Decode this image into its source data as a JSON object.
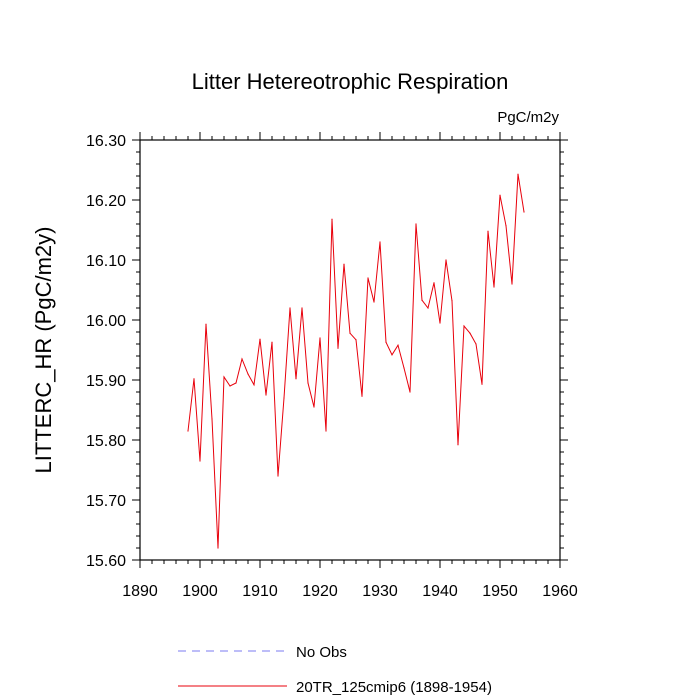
{
  "chart_data": {
    "type": "line",
    "title": "Litter Hetereotrophic Respiration",
    "units": "PgC/m2y",
    "xlabel": "",
    "ylabel": "LITTERC_HR  (PgC/m2y)",
    "xlim": [
      1890,
      1960
    ],
    "ylim": [
      15.6,
      16.3
    ],
    "x_ticks": [
      1890,
      1900,
      1910,
      1920,
      1930,
      1940,
      1950,
      1960
    ],
    "x_tick_labels": [
      "1890",
      "1900",
      "1910",
      "1920",
      "1930",
      "1940",
      "1950",
      "1960"
    ],
    "y_ticks": [
      15.6,
      15.7,
      15.8,
      15.9,
      16.0,
      16.1,
      16.2,
      16.3
    ],
    "y_tick_labels": [
      "15.60",
      "15.70",
      "15.80",
      "15.90",
      "16.00",
      "16.10",
      "16.20",
      "16.30"
    ],
    "series": [
      {
        "name": "20TR_125cmip6 (1898-1954)",
        "color": "#e8000b",
        "style": "solid",
        "x": [
          1898,
          1899,
          1900,
          1901,
          1902,
          1903,
          1904,
          1905,
          1906,
          1907,
          1908,
          1909,
          1910,
          1911,
          1912,
          1913,
          1914,
          1915,
          1916,
          1917,
          1918,
          1919,
          1920,
          1921,
          1922,
          1923,
          1924,
          1925,
          1926,
          1927,
          1928,
          1929,
          1930,
          1931,
          1932,
          1933,
          1934,
          1935,
          1936,
          1937,
          1938,
          1939,
          1940,
          1941,
          1942,
          1943,
          1944,
          1945,
          1946,
          1947,
          1948,
          1949,
          1950,
          1951,
          1952,
          1953,
          1954
        ],
        "values": [
          15.815,
          15.902,
          15.765,
          15.993,
          15.835,
          15.62,
          15.905,
          15.89,
          15.895,
          15.935,
          15.91,
          15.892,
          15.968,
          15.875,
          15.963,
          15.74,
          15.87,
          16.02,
          15.902,
          16.02,
          15.895,
          15.855,
          15.97,
          15.815,
          16.168,
          15.953,
          16.093,
          15.978,
          15.967,
          15.873,
          16.07,
          16.03,
          16.13,
          15.963,
          15.942,
          15.958,
          15.92,
          15.88,
          16.16,
          16.033,
          16.02,
          16.062,
          15.995,
          16.1,
          16.032,
          15.792,
          15.99,
          15.978,
          15.96,
          15.893,
          16.148,
          16.055,
          16.208,
          16.157,
          16.06,
          16.243,
          16.18
        ]
      },
      {
        "name": "No Obs",
        "color": "#7b7bf0",
        "style": "dashed",
        "x": [],
        "values": []
      }
    ],
    "legend": {
      "position": "bottom-left",
      "entries": [
        "No Obs",
        "20TR_125cmip6 (1898-1954)"
      ]
    }
  }
}
